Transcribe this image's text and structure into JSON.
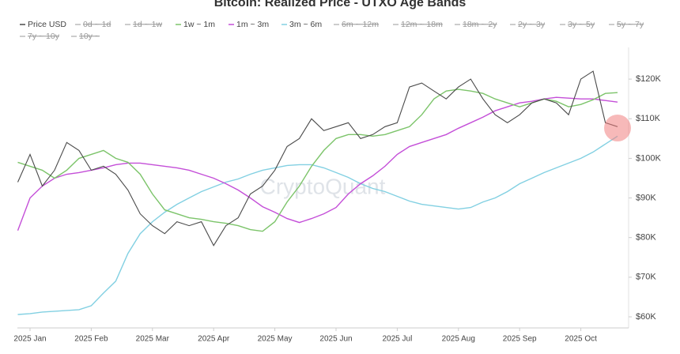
{
  "chart_data": {
    "type": "line",
    "title": "Bitcoin: Realized Price - UTXO Age Bands",
    "watermark": "CryptoQuant",
    "x": [
      -0.2,
      0,
      0.2,
      0.4,
      0.6,
      0.8,
      1.0,
      1.2,
      1.4,
      1.6,
      1.8,
      2.0,
      2.2,
      2.4,
      2.6,
      2.8,
      3.0,
      3.2,
      3.4,
      3.6,
      3.8,
      4.0,
      4.2,
      4.4,
      4.6,
      4.8,
      5.0,
      5.2,
      5.4,
      5.6,
      5.8,
      6.0,
      6.2,
      6.4,
      6.6,
      6.8,
      7.0,
      7.2,
      7.4,
      7.6,
      7.8,
      8.0,
      8.2,
      8.4,
      8.6,
      8.8,
      9.0,
      9.2,
      9.4,
      9.6
    ],
    "xlim": [
      -0.2,
      9.72
    ],
    "xticks": [
      {
        "value": 0,
        "label": "2025 Jan"
      },
      {
        "value": 1,
        "label": "2025 Feb"
      },
      {
        "value": 2,
        "label": "2025 Mar"
      },
      {
        "value": 3,
        "label": "2025 Apr"
      },
      {
        "value": 4,
        "label": "2025 May"
      },
      {
        "value": 5,
        "label": "2025 Jun"
      },
      {
        "value": 6,
        "label": "2025 Jul"
      },
      {
        "value": 7,
        "label": "2025 Aug"
      },
      {
        "value": 8,
        "label": "2025 Sep"
      },
      {
        "value": 9,
        "label": "2025 Oct"
      }
    ],
    "ylim": [
      57200,
      128000
    ],
    "yticks": [
      {
        "value": 60000,
        "label": "$60K"
      },
      {
        "value": 70000,
        "label": "$70K"
      },
      {
        "value": 80000,
        "label": "$80K"
      },
      {
        "value": 90000,
        "label": "$90K"
      },
      {
        "value": 100000,
        "label": "$100K"
      },
      {
        "value": 110000,
        "label": "$110K"
      },
      {
        "value": 120000,
        "label": "$120K"
      }
    ],
    "series": [
      {
        "name": "Price USD",
        "color": "#4a4a4a",
        "values": [
          94000,
          101000,
          93000,
          97000,
          104000,
          102000,
          97000,
          98000,
          96000,
          92000,
          86000,
          83000,
          81000,
          84000,
          83000,
          84000,
          78000,
          83000,
          85000,
          91000,
          93000,
          97000,
          103000,
          105000,
          110000,
          107000,
          108000,
          109000,
          105000,
          106000,
          108000,
          109000,
          118000,
          119000,
          117000,
          115000,
          118000,
          120000,
          115000,
          111000,
          109000,
          111000,
          114000,
          115000,
          114000,
          111000,
          120000,
          122000,
          109000,
          108000
        ]
      },
      {
        "name": "1w ~ 1m",
        "color": "#7cc46a",
        "values": [
          99000,
          98000,
          97000,
          95000,
          97000,
          100000,
          101000,
          102000,
          100000,
          99000,
          96000,
          91000,
          87000,
          86000,
          85000,
          84600,
          84000,
          83600,
          83000,
          82000,
          81600,
          84000,
          89000,
          93000,
          98000,
          102000,
          105000,
          106000,
          106000,
          105600,
          106000,
          107000,
          108000,
          111000,
          115000,
          117000,
          117400,
          117000,
          116400,
          115000,
          114000,
          113000,
          114000,
          115000,
          114400,
          113000,
          113600,
          114800,
          116400,
          116600
        ]
      },
      {
        "name": "1m ~ 3m",
        "color": "#c44fd8",
        "values": [
          81800,
          90000,
          93000,
          95000,
          96000,
          96400,
          97000,
          97600,
          98400,
          98800,
          98800,
          98400,
          98000,
          97600,
          97000,
          96000,
          95000,
          93600,
          92000,
          90000,
          87800,
          86400,
          84800,
          83800,
          84800,
          86000,
          87600,
          91000,
          93600,
          95600,
          98000,
          101000,
          103000,
          104000,
          105000,
          106000,
          107600,
          109000,
          110400,
          112000,
          113000,
          114000,
          114400,
          115000,
          115400,
          115200,
          115000,
          115000,
          114600,
          114200
        ]
      },
      {
        "name": "3m ~ 6m",
        "color": "#82d0e2",
        "values": [
          60600,
          60800,
          61200,
          61400,
          61600,
          61800,
          62800,
          66000,
          69000,
          76000,
          81000,
          84000,
          86400,
          88400,
          90000,
          91600,
          92800,
          94000,
          94800,
          96000,
          97000,
          97600,
          98200,
          98400,
          98400,
          97600,
          96400,
          95200,
          93600,
          92400,
          91600,
          90400,
          89200,
          88400,
          88000,
          87600,
          87200,
          87600,
          89000,
          90000,
          91600,
          93600,
          95000,
          96400,
          97600,
          98800,
          100000,
          101600,
          103600,
          105600
        ]
      }
    ],
    "hidden_series": [
      "0d ~ 1d",
      "1d ~ 1w",
      "6m ~ 12m",
      "12m ~ 18m",
      "18m ~ 2y",
      "2y ~ 3y",
      "3y ~ 5y",
      "5y ~ 7y",
      "7y ~ 10y",
      "10y ~"
    ]
  }
}
